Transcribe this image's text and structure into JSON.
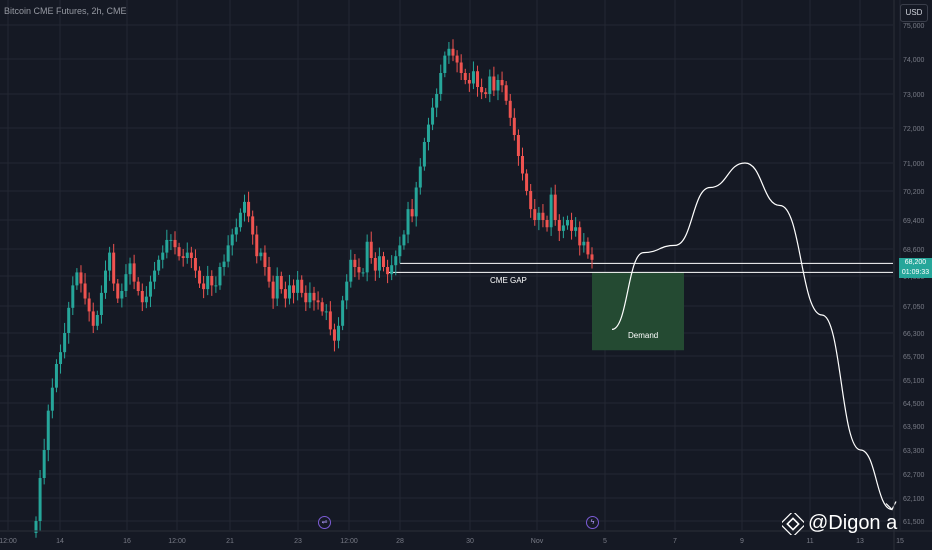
{
  "header": {
    "title": "Bitcoin CME Futures, 2h, CME",
    "currency": "USD"
  },
  "price_tag": {
    "price": "68,200",
    "countdown": "01:09:33"
  },
  "annotations": {
    "gap": "CME GAP",
    "demand": "Demand"
  },
  "watermark": {
    "handle": "@Digon a",
    "logo_icon": "binance-diamond-icon"
  },
  "events": [
    {
      "icon": "dividend-icon",
      "glyph": "⇌"
    },
    {
      "icon": "lightning-icon",
      "glyph": "ϟ"
    }
  ],
  "colors": {
    "background": "#151924",
    "up": "#26a69a",
    "down": "#ef5350",
    "grid": "#242733",
    "demand_zone": "#244a32",
    "line": "#ffffff"
  },
  "chart_data": {
    "type": "candlestick",
    "y_ticks": [
      "75,000",
      "74,000",
      "73,000",
      "72,000",
      "71,000",
      "70,200",
      "69,400",
      "68,600",
      "67,850",
      "67,050",
      "66,300",
      "65,700",
      "65,100",
      "64,500",
      "63,900",
      "63,300",
      "62,700",
      "62,100",
      "61,500"
    ],
    "x_ticks": [
      "12:00",
      "14",
      "16",
      "12:00",
      "21",
      "23",
      "12:00",
      "28",
      "30",
      "Nov",
      "5",
      "7",
      "9",
      "11",
      "13",
      "15"
    ],
    "ylim": [
      61500,
      75400
    ],
    "cme_gap": {
      "upper": 68200,
      "lower": 67950
    },
    "demand_zone": {
      "top": 67950,
      "bottom": 65850
    },
    "close_series": [
      61500,
      62600,
      63300,
      64300,
      64900,
      65500,
      65800,
      66300,
      67000,
      67600,
      67950,
      67650,
      67250,
      66900,
      66500,
      66800,
      67400,
      68000,
      68500,
      67650,
      67250,
      67450,
      67900,
      68200,
      67700,
      67450,
      67150,
      67300,
      67700,
      68000,
      68300,
      68500,
      68850,
      68850,
      68650,
      68400,
      68350,
      68500,
      68350,
      68000,
      67650,
      67500,
      67850,
      67600,
      67600,
      68100,
      68250,
      68700,
      69000,
      69200,
      69600,
      69900,
      69500,
      69000,
      68400,
      68500,
      68100,
      67700,
      67250,
      67850,
      67500,
      67250,
      67600,
      67400,
      67750,
      67400,
      67150,
      67400,
      67200,
      67150,
      66900,
      66900,
      66400,
      66100,
      66500,
      67200,
      67700,
      68300,
      68100,
      67950,
      67950,
      68800,
      68350,
      68000,
      68400,
      68100,
      67900,
      68150,
      68400,
      68700,
      69000,
      69700,
      69500,
      70300,
      70900,
      71600,
      72100,
      72600,
      73000,
      73600,
      74100,
      74300,
      74100,
      73900,
      73600,
      73400,
      73300,
      73650,
      73200,
      73050,
      73000,
      73500,
      73100,
      73400,
      73250,
      72800,
      72300,
      71800,
      71200,
      70700,
      70200,
      69700,
      69400,
      69600,
      69400,
      69200,
      70100,
      69400,
      69100,
      69250,
      69400,
      69100,
      69200,
      68700,
      68800,
      68450,
      68300
    ],
    "projection": [
      [
        5.2,
        66400
      ],
      [
        6.1,
        68500
      ],
      [
        7.0,
        68700
      ],
      [
        8.0,
        70300
      ],
      [
        9.0,
        71000
      ],
      [
        10.0,
        69800
      ],
      [
        11.2,
        66800
      ],
      [
        12.3,
        63300
      ],
      [
        13.2,
        61800
      ]
    ]
  }
}
